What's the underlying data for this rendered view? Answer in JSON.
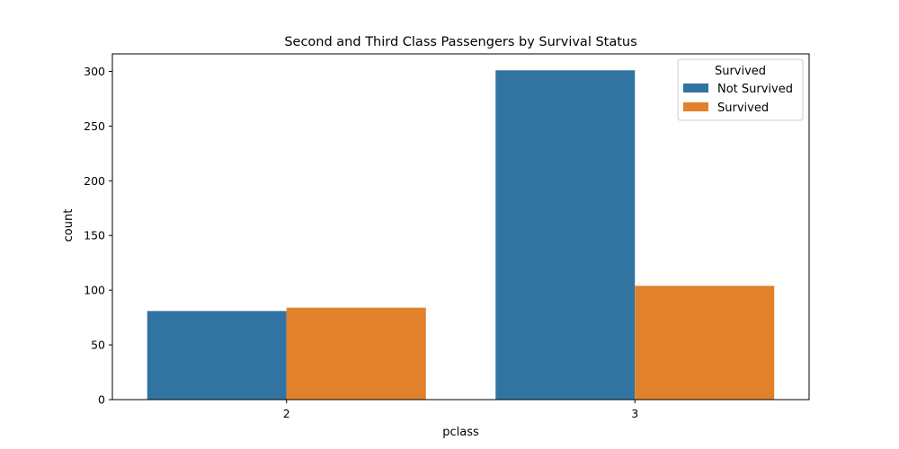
{
  "chart_data": {
    "type": "bar",
    "title": "Second and Third Class Passengers by Survival Status",
    "xlabel": "pclass",
    "ylabel": "count",
    "categories": [
      "2",
      "3"
    ],
    "series": [
      {
        "name": "Not Survived",
        "values": [
          81,
          301
        ],
        "color": "#3274a1"
      },
      {
        "name": "Survived",
        "values": [
          84,
          104
        ],
        "color": "#e1812c"
      }
    ],
    "ylim": [
      0,
      316
    ],
    "yticks": [
      0,
      50,
      100,
      150,
      200,
      250,
      300
    ],
    "grid": false,
    "legend": {
      "title": "Survived",
      "placement": "top-right"
    }
  }
}
